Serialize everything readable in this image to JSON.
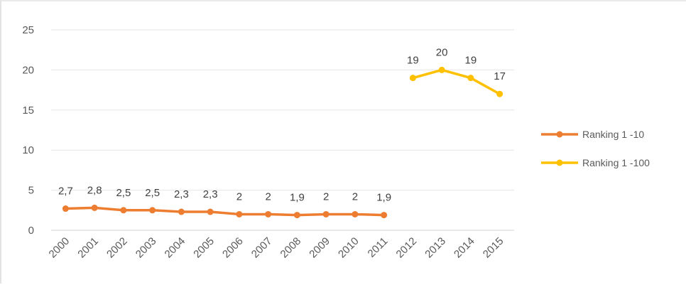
{
  "chart_data": {
    "type": "line",
    "x": [
      "2000",
      "2001",
      "2002",
      "2003",
      "2004",
      "2005",
      "2006",
      "2007",
      "2008",
      "2009",
      "2010",
      "2011",
      "2012",
      "2013",
      "2014",
      "2015"
    ],
    "ylim": [
      0,
      25
    ],
    "yticks": [
      0,
      5,
      10,
      15,
      20,
      25
    ],
    "grid": true,
    "legend_position": "right",
    "title": "",
    "xlabel": "",
    "ylabel": "",
    "series": [
      {
        "name": "Ranking 1 -10",
        "color": "#ed7d31",
        "values": [
          2.7,
          2.8,
          2.5,
          2.5,
          2.3,
          2.3,
          2,
          2,
          1.9,
          2,
          2,
          1.9,
          null,
          null,
          null,
          null
        ],
        "labels": [
          "2,7",
          "2,8",
          "2,5",
          "2,5",
          "2,3",
          "2,3",
          "2",
          "2",
          "1,9",
          "2",
          "2",
          "1,9",
          null,
          null,
          null,
          null
        ]
      },
      {
        "name": "Ranking 1 -100",
        "color": "#ffc000",
        "values": [
          null,
          null,
          null,
          null,
          null,
          null,
          null,
          null,
          null,
          null,
          null,
          null,
          19,
          20,
          19,
          17
        ],
        "labels": [
          null,
          null,
          null,
          null,
          null,
          null,
          null,
          null,
          null,
          null,
          null,
          null,
          "19",
          "20",
          "19",
          "17"
        ]
      }
    ]
  }
}
